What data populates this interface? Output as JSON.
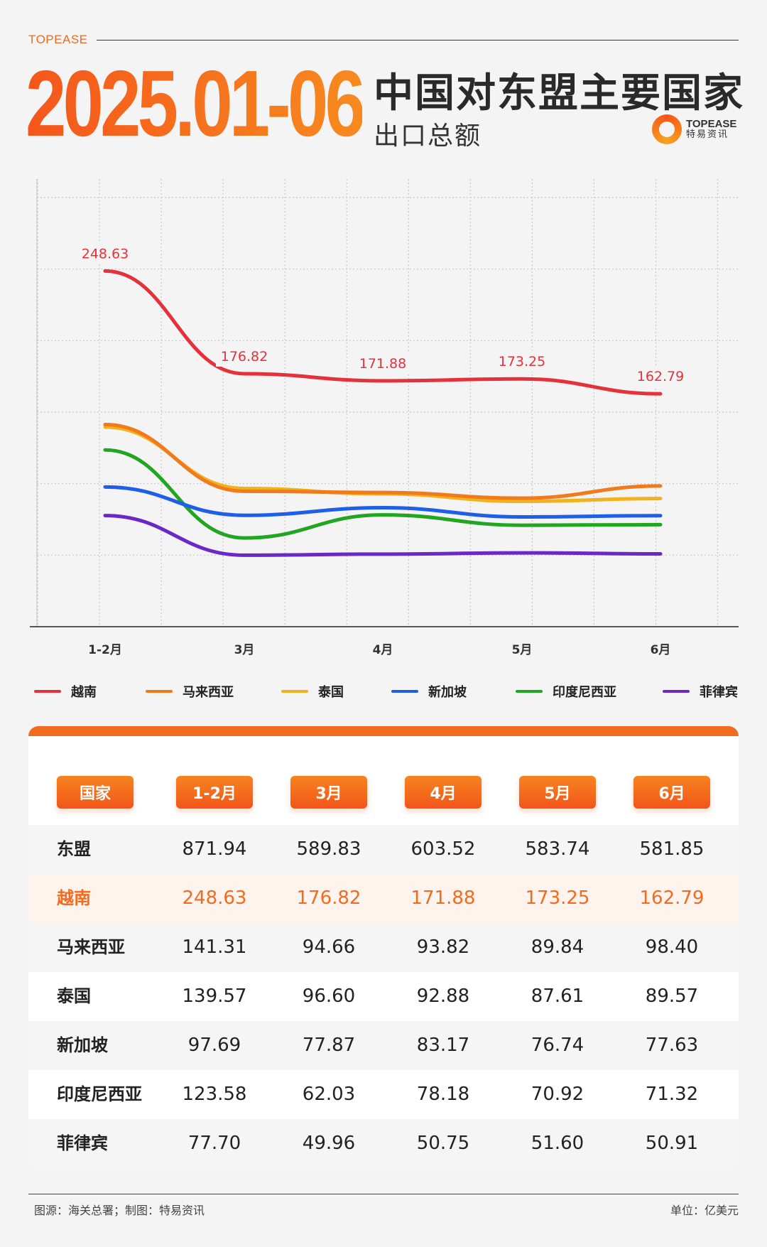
{
  "header": {
    "brand": "TOPEASE",
    "date_range": "2025.01-06",
    "title": "中国对东盟主要国家",
    "subtitle": "出口总额",
    "logo_en": "TOPEASE",
    "logo_cn": "特易资讯",
    "accent_color": "#f26b1f"
  },
  "chart_data": {
    "type": "line",
    "title": "中国对东盟主要国家出口总额",
    "xlabel": "",
    "ylabel": "",
    "categories": [
      "1-2月",
      "3月",
      "4月",
      "5月",
      "6月"
    ],
    "ylim": [
      0,
      300
    ],
    "grid": true,
    "series": [
      {
        "name": "越南",
        "color": "#e5323a",
        "values": [
          248.63,
          176.82,
          171.88,
          173.25,
          162.79
        ],
        "labeled": true
      },
      {
        "name": "马来西亚",
        "color": "#f07a1c",
        "values": [
          141.31,
          94.66,
          93.82,
          89.84,
          98.4
        ]
      },
      {
        "name": "泰国",
        "color": "#f2b21d",
        "values": [
          139.57,
          96.6,
          92.88,
          87.61,
          89.57
        ]
      },
      {
        "name": "新加坡",
        "color": "#1f5ee8",
        "values": [
          97.69,
          77.87,
          83.17,
          76.74,
          77.63
        ]
      },
      {
        "name": "印度尼西亚",
        "color": "#22a521",
        "values": [
          123.58,
          62.03,
          78.18,
          70.92,
          71.32
        ]
      },
      {
        "name": "菲律宾",
        "color": "#6a28c4",
        "values": [
          77.7,
          49.96,
          50.75,
          51.6,
          50.91
        ]
      }
    ],
    "data_labels": [
      "248.63",
      "176.82",
      "171.88",
      "173.25",
      "162.79"
    ]
  },
  "table": {
    "headers": [
      "国家",
      "1-2月",
      "3月",
      "4月",
      "5月",
      "6月"
    ],
    "rows": [
      {
        "name": "东盟",
        "values": [
          "871.94",
          "589.83",
          "603.52",
          "583.74",
          "581.85"
        ]
      },
      {
        "name": "越南",
        "values": [
          "248.63",
          "176.82",
          "171.88",
          "173.25",
          "162.79"
        ],
        "highlight": true
      },
      {
        "name": "马来西亚",
        "values": [
          "141.31",
          "94.66",
          "93.82",
          "89.84",
          "98.40"
        ]
      },
      {
        "name": "泰国",
        "values": [
          "139.57",
          "96.60",
          "92.88",
          "87.61",
          "89.57"
        ]
      },
      {
        "name": "新加坡",
        "values": [
          "97.69",
          "77.87",
          "83.17",
          "76.74",
          "77.63"
        ]
      },
      {
        "name": "印度尼西亚",
        "values": [
          "123.58",
          "62.03",
          "78.18",
          "70.92",
          "71.32"
        ]
      },
      {
        "name": "菲律宾",
        "values": [
          "77.70",
          "49.96",
          "50.75",
          "51.60",
          "50.91"
        ]
      }
    ]
  },
  "footer": {
    "source": "图源：海关总署；制图：特易资讯",
    "unit": "单位：亿美元"
  }
}
